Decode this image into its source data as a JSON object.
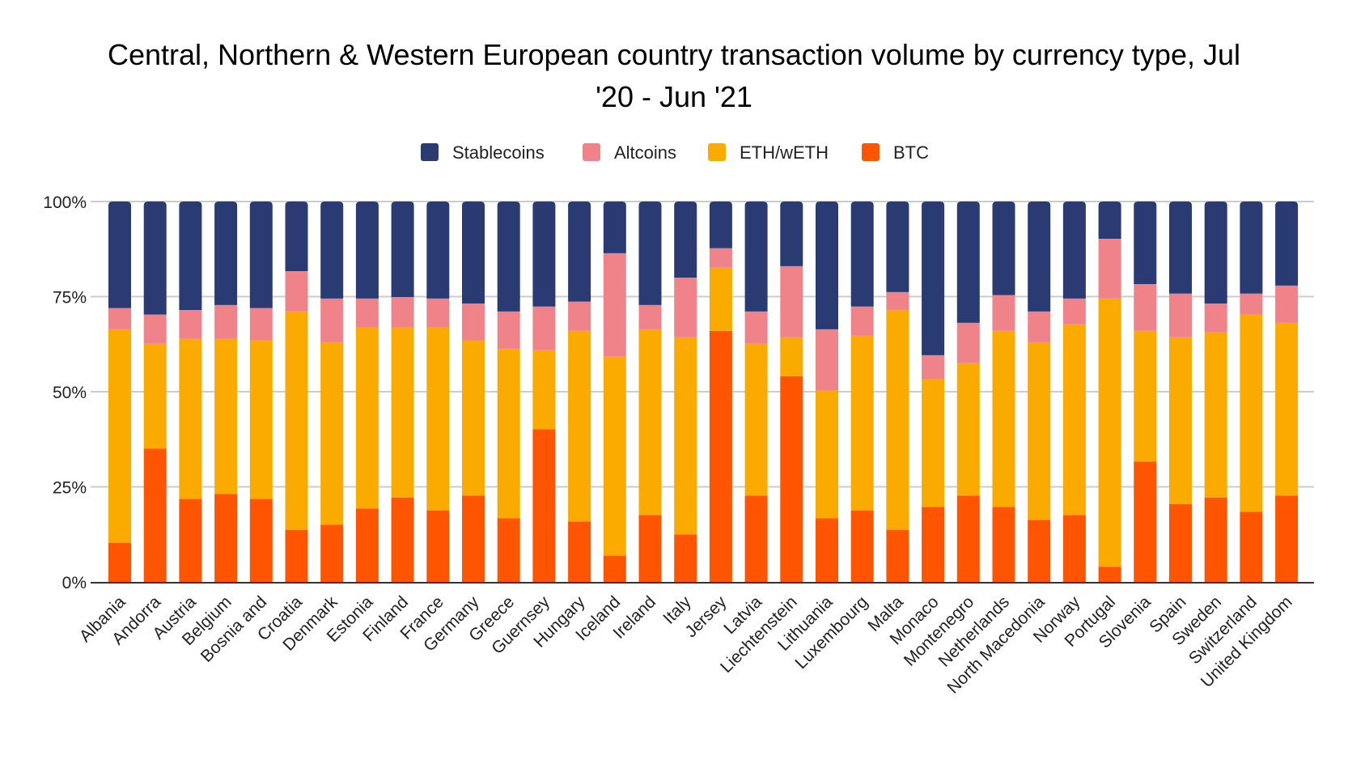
{
  "chart_data": {
    "type": "bar",
    "stacked": true,
    "percent": true,
    "title": "Central, Northern & Western European country transaction volume by currency type, Jul '20 - Jun '21",
    "title_lines": [
      "Central, Northern & Western European country transaction volume by currency type, Jul",
      "'20 - Jun '21"
    ],
    "xlabel": "",
    "ylabel": "",
    "ylim": [
      0,
      100
    ],
    "yticks": [
      0,
      25,
      50,
      75,
      100
    ],
    "ytick_labels": [
      "0%",
      "25%",
      "50%",
      "75%",
      "100%"
    ],
    "grid": true,
    "legend_position": "top-center",
    "categories": [
      "Albania",
      "Andorra",
      "Austria",
      "Belgium",
      "Bosnia and",
      "Croatia",
      "Denmark",
      "Estonia",
      "Finland",
      "France",
      "Germany",
      "Greece",
      "Guernsey",
      "Hungary",
      "Iceland",
      "Ireland",
      "Italy",
      "Jersey",
      "Latvia",
      "Liechtenstein",
      "Lithuania",
      "Luxembourg",
      "Malta",
      "Monaco",
      "Montenegro",
      "Netherlands",
      "North Macedonia",
      "Norway",
      "Portugal",
      "Slovenia",
      "Spain",
      "Sweden",
      "Switzerland",
      "United Kingdom"
    ],
    "series": [
      {
        "name": "BTC",
        "color": "#ff5500",
        "values": [
          10.3,
          35.0,
          21.8,
          23.1,
          21.8,
          13.7,
          15.0,
          19.3,
          22.2,
          18.8,
          22.7,
          16.7,
          40.1,
          15.9,
          6.9,
          17.6,
          12.5,
          66.0,
          22.7,
          54.1,
          16.7,
          18.8,
          13.7,
          19.7,
          22.7,
          19.7,
          16.3,
          17.6,
          4.0,
          31.6,
          20.5,
          22.2,
          18.4,
          22.7
        ]
      },
      {
        "name": "ETH/wETH",
        "color": "#fbab00",
        "values": [
          56.1,
          27.6,
          42.1,
          40.8,
          41.7,
          57.4,
          48.0,
          47.6,
          44.7,
          48.1,
          40.8,
          44.6,
          20.8,
          50.1,
          52.3,
          48.8,
          51.8,
          16.6,
          39.9,
          10.2,
          33.6,
          45.9,
          57.8,
          33.6,
          34.8,
          46.3,
          46.7,
          50.1,
          70.5,
          34.4,
          43.8,
          43.4,
          51.9,
          45.4
        ]
      },
      {
        "name": "Altcoins",
        "color": "#f0838a",
        "values": [
          5.6,
          7.7,
          7.6,
          8.9,
          8.5,
          10.6,
          11.5,
          7.6,
          8.0,
          7.6,
          9.7,
          9.8,
          11.5,
          7.7,
          27.2,
          6.4,
          15.7,
          5.1,
          8.5,
          18.7,
          16.1,
          7.7,
          4.7,
          6.3,
          10.6,
          9.4,
          8.1,
          6.8,
          15.7,
          12.3,
          11.5,
          7.6,
          5.5,
          9.8
        ]
      },
      {
        "name": "Stablecoins",
        "color": "#2a3a73",
        "values": [
          28.0,
          29.7,
          28.5,
          27.2,
          28.0,
          18.3,
          25.5,
          25.5,
          25.1,
          25.5,
          26.8,
          28.9,
          27.6,
          26.3,
          13.6,
          27.2,
          20.0,
          12.3,
          28.9,
          17.0,
          33.6,
          27.6,
          23.8,
          40.4,
          31.9,
          24.6,
          28.9,
          25.5,
          9.8,
          21.7,
          24.2,
          26.8,
          24.2,
          22.1
        ]
      }
    ],
    "legend_order": [
      "Stablecoins",
      "Altcoins",
      "ETH/wETH",
      "BTC"
    ]
  }
}
